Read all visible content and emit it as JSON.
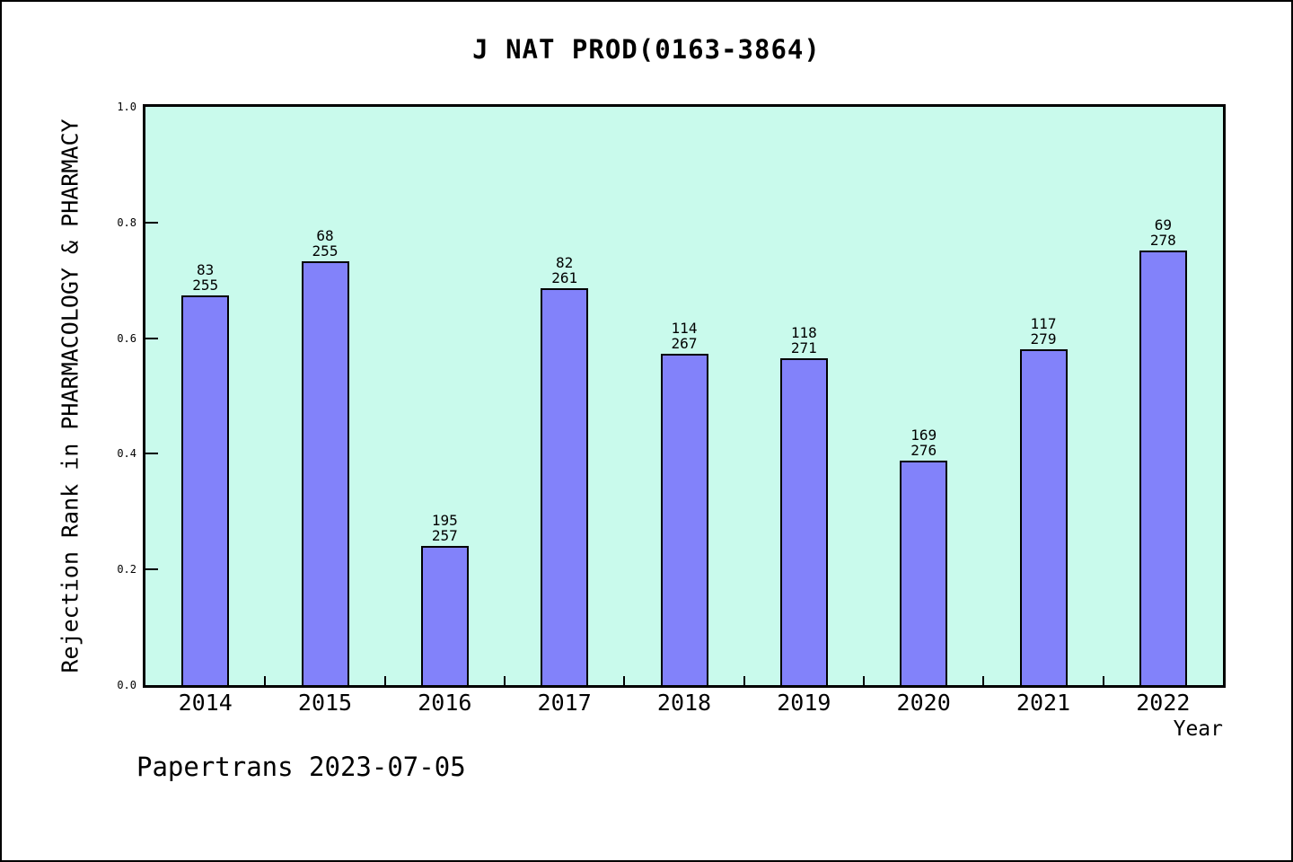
{
  "footer": {
    "text": "Papertrans 2023-07-05"
  },
  "chart_data": {
    "type": "bar",
    "title": "J NAT PROD(0163-3864)",
    "xlabel": "Year",
    "ylabel": "Rejection Rank in PHARMACOLOGY & PHARMACY",
    "ylim": [
      0.0,
      1.0
    ],
    "grid": false,
    "legend": "none",
    "yticks": [
      0.0,
      0.2,
      0.4,
      0.6,
      0.8,
      1.0
    ],
    "ytick_labels": [
      "0.0",
      "0.2",
      "0.4",
      "0.6",
      "0.8",
      "1.0"
    ],
    "categories": [
      "2014",
      "2015",
      "2016",
      "2017",
      "2018",
      "2019",
      "2020",
      "2021",
      "2022"
    ],
    "bars": [
      {
        "year": "2014",
        "rank": 83,
        "total": 255,
        "value": 0.6745
      },
      {
        "year": "2015",
        "rank": 68,
        "total": 255,
        "value": 0.7333
      },
      {
        "year": "2016",
        "rank": 195,
        "total": 257,
        "value": 0.2412
      },
      {
        "year": "2017",
        "rank": 82,
        "total": 261,
        "value": 0.6858
      },
      {
        "year": "2018",
        "rank": 114,
        "total": 267,
        "value": 0.573
      },
      {
        "year": "2019",
        "rank": 118,
        "total": 271,
        "value": 0.5646
      },
      {
        "year": "2020",
        "rank": 169,
        "total": 276,
        "value": 0.3877
      },
      {
        "year": "2021",
        "rank": 117,
        "total": 279,
        "value": 0.5806
      },
      {
        "year": "2022",
        "rank": 69,
        "total": 278,
        "value": 0.7518
      }
    ],
    "colors": {
      "bar_fill": "#8282fa",
      "bar_border": "#000000",
      "plot_background": "#c9faec",
      "axis": "#000000",
      "text": "#000000"
    }
  }
}
